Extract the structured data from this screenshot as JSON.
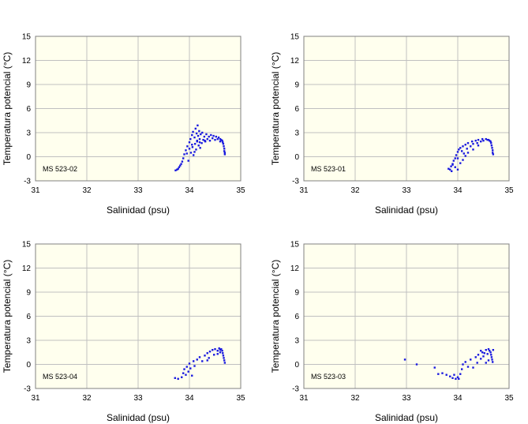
{
  "colors": {
    "plot_bg": "#ffffee",
    "grid": "#c0c0c0",
    "frame": "#808080",
    "points": "#1a1adf"
  },
  "chart_data": [
    {
      "type": "scatter",
      "station": "MS 523-02",
      "xlabel": "Salinidad (psu)",
      "ylabel": "Temperatura potencial (°C)",
      "xlim": [
        31,
        35
      ],
      "ylim": [
        -3,
        15
      ],
      "xticks": [
        "31",
        "32",
        "33",
        "34",
        "35"
      ],
      "yticks": [
        "15",
        "12",
        "9",
        "6",
        "3",
        "0",
        "-3"
      ],
      "points": [
        [
          33.73,
          -1.7
        ],
        [
          33.76,
          -1.6
        ],
        [
          33.78,
          -1.5
        ],
        [
          33.8,
          -1.3
        ],
        [
          33.82,
          -1.1
        ],
        [
          33.84,
          -0.9
        ],
        [
          33.86,
          -0.6
        ],
        [
          33.88,
          -0.2
        ],
        [
          33.9,
          0.3
        ],
        [
          33.93,
          0.8
        ],
        [
          33.96,
          1.3
        ],
        [
          33.98,
          -0.5
        ],
        [
          34.0,
          1.8
        ],
        [
          34.02,
          2.2
        ],
        [
          34.03,
          0.5
        ],
        [
          34.05,
          2.7
        ],
        [
          34.06,
          1.2
        ],
        [
          34.07,
          3.1
        ],
        [
          34.08,
          0.2
        ],
        [
          34.1,
          2.4
        ],
        [
          34.11,
          1.6
        ],
        [
          34.12,
          3.5
        ],
        [
          34.13,
          0.9
        ],
        [
          34.14,
          2.9
        ],
        [
          34.15,
          1.9
        ],
        [
          34.16,
          3.9
        ],
        [
          34.17,
          2.6
        ],
        [
          34.18,
          1.4
        ],
        [
          34.19,
          3.2
        ],
        [
          34.2,
          2.2
        ],
        [
          34.21,
          1.1
        ],
        [
          34.22,
          2.8
        ],
        [
          34.24,
          1.7
        ],
        [
          34.25,
          3.0
        ],
        [
          34.27,
          2.1
        ],
        [
          34.29,
          2.5
        ],
        [
          34.31,
          1.9
        ],
        [
          34.33,
          2.8
        ],
        [
          34.35,
          2.2
        ],
        [
          34.38,
          2.5
        ],
        [
          34.4,
          2.0
        ],
        [
          34.42,
          2.7
        ],
        [
          34.45,
          2.3
        ],
        [
          34.47,
          2.6
        ],
        [
          34.5,
          2.1
        ],
        [
          34.52,
          2.5
        ],
        [
          34.55,
          2.2
        ],
        [
          34.57,
          2.4
        ],
        [
          34.6,
          2.2
        ],
        [
          34.62,
          2.1
        ],
        [
          34.64,
          2.0
        ],
        [
          34.65,
          1.8
        ],
        [
          34.66,
          1.6
        ],
        [
          34.67,
          1.3
        ],
        [
          34.68,
          1.0
        ],
        [
          34.68,
          0.7
        ],
        [
          34.69,
          0.5
        ],
        [
          34.69,
          0.3
        ],
        [
          34.0,
          1.0
        ],
        [
          34.05,
          1.5
        ],
        [
          34.1,
          0.6
        ],
        [
          34.2,
          1.8
        ],
        [
          33.95,
          0.4
        ],
        [
          34.15,
          2.0
        ],
        [
          34.3,
          2.0
        ],
        [
          34.6,
          1.9
        ]
      ]
    },
    {
      "type": "scatter",
      "station": "MS 523-01",
      "xlabel": "Salinidad (psu)",
      "ylabel": "Temperatura potencial (°C)",
      "xlim": [
        31,
        35
      ],
      "ylim": [
        -3,
        15
      ],
      "xticks": [
        "31",
        "32",
        "33",
        "34",
        "35"
      ],
      "yticks": [
        "15",
        "12",
        "9",
        "6",
        "3",
        "0",
        "-3"
      ],
      "points": [
        [
          33.82,
          -1.5
        ],
        [
          33.85,
          -1.6
        ],
        [
          33.87,
          -1.2
        ],
        [
          33.9,
          -0.9
        ],
        [
          33.92,
          -0.5
        ],
        [
          33.95,
          -0.2
        ],
        [
          33.97,
          0.2
        ],
        [
          34.0,
          0.6
        ],
        [
          34.02,
          0.9
        ],
        [
          34.05,
          1.1
        ],
        [
          34.08,
          0.7
        ],
        [
          34.1,
          1.3
        ],
        [
          34.12,
          0.4
        ],
        [
          34.15,
          1.5
        ],
        [
          34.18,
          1.0
        ],
        [
          34.2,
          1.7
        ],
        [
          34.25,
          1.3
        ],
        [
          34.28,
          1.9
        ],
        [
          34.3,
          1.6
        ],
        [
          34.35,
          2.0
        ],
        [
          34.38,
          1.7
        ],
        [
          34.4,
          2.1
        ],
        [
          34.45,
          1.9
        ],
        [
          34.48,
          2.2
        ],
        [
          34.5,
          2.0
        ],
        [
          34.55,
          2.2
        ],
        [
          34.58,
          2.1
        ],
        [
          34.6,
          2.1
        ],
        [
          34.62,
          2.0
        ],
        [
          34.64,
          1.9
        ],
        [
          34.65,
          1.7
        ],
        [
          34.66,
          1.4
        ],
        [
          34.67,
          1.1
        ],
        [
          34.68,
          0.8
        ],
        [
          34.68,
          0.5
        ],
        [
          34.69,
          0.3
        ],
        [
          33.9,
          -1.0
        ],
        [
          33.95,
          -1.3
        ],
        [
          34.0,
          -1.6
        ],
        [
          34.05,
          -0.8
        ],
        [
          34.1,
          -0.4
        ],
        [
          34.15,
          0.1
        ],
        [
          34.2,
          0.5
        ],
        [
          34.3,
          0.9
        ],
        [
          34.4,
          1.4
        ],
        [
          33.88,
          -1.8
        ],
        [
          34.0,
          -0.2
        ]
      ]
    },
    {
      "type": "scatter",
      "station": "MS 523-04",
      "xlabel": "Salinidad (psu)",
      "ylabel": "Temperatura potencial (°C)",
      "xlim": [
        31,
        35
      ],
      "ylim": [
        -3,
        15
      ],
      "xticks": [
        "31",
        "32",
        "33",
        "34",
        "35"
      ],
      "yticks": [
        "15",
        "12",
        "9",
        "6",
        "3",
        "0",
        "-3"
      ],
      "points": [
        [
          33.72,
          -1.7
        ],
        [
          33.78,
          -1.8
        ],
        [
          33.85,
          -1.6
        ],
        [
          33.88,
          -1.1
        ],
        [
          33.9,
          -0.6
        ],
        [
          33.93,
          -1.3
        ],
        [
          33.95,
          -0.3
        ],
        [
          33.98,
          -0.9
        ],
        [
          34.0,
          0.1
        ],
        [
          34.02,
          -0.5
        ],
        [
          34.05,
          -1.4
        ],
        [
          34.08,
          0.4
        ],
        [
          34.1,
          -0.2
        ],
        [
          34.15,
          0.6
        ],
        [
          34.2,
          0.9
        ],
        [
          34.25,
          0.4
        ],
        [
          34.3,
          1.1
        ],
        [
          34.35,
          1.4
        ],
        [
          34.38,
          0.8
        ],
        [
          34.4,
          1.6
        ],
        [
          34.45,
          1.8
        ],
        [
          34.48,
          1.2
        ],
        [
          34.5,
          1.9
        ],
        [
          34.55,
          1.7
        ],
        [
          34.58,
          2.0
        ],
        [
          34.6,
          1.8
        ],
        [
          34.62,
          1.9
        ],
        [
          34.64,
          1.7
        ],
        [
          34.65,
          1.4
        ],
        [
          34.66,
          1.1
        ],
        [
          34.67,
          0.8
        ],
        [
          34.68,
          0.5
        ],
        [
          34.69,
          0.2
        ],
        [
          34.35,
          0.5
        ],
        [
          34.55,
          1.3
        ],
        [
          34.6,
          1.5
        ]
      ]
    },
    {
      "type": "scatter",
      "station": "MS 523-03",
      "xlabel": "Salinidad (psu)",
      "ylabel": "Temperatura potencial (°C)",
      "xlim": [
        31,
        35
      ],
      "ylim": [
        -3,
        15
      ],
      "xticks": [
        "31",
        "32",
        "33",
        "34",
        "35"
      ],
      "yticks": [
        "15",
        "12",
        "9",
        "6",
        "3",
        "0",
        "-3"
      ],
      "points": [
        [
          32.97,
          0.6
        ],
        [
          33.2,
          0.0
        ],
        [
          33.55,
          -0.4
        ],
        [
          33.62,
          -1.2
        ],
        [
          33.7,
          -1.1
        ],
        [
          33.78,
          -1.3
        ],
        [
          33.85,
          -1.5
        ],
        [
          33.9,
          -1.7
        ],
        [
          33.93,
          -1.3
        ],
        [
          33.96,
          -1.8
        ],
        [
          34.0,
          -1.6
        ],
        [
          34.02,
          -1.8
        ],
        [
          34.05,
          -1.2
        ],
        [
          34.08,
          -0.6
        ],
        [
          34.1,
          0.0
        ],
        [
          34.15,
          0.3
        ],
        [
          34.2,
          -0.3
        ],
        [
          34.25,
          0.6
        ],
        [
          34.3,
          -0.4
        ],
        [
          34.35,
          0.9
        ],
        [
          34.38,
          0.2
        ],
        [
          34.4,
          1.2
        ],
        [
          34.45,
          0.7
        ],
        [
          34.48,
          1.5
        ],
        [
          34.5,
          1.0
        ],
        [
          34.55,
          1.8
        ],
        [
          34.58,
          1.3
        ],
        [
          34.6,
          1.9
        ],
        [
          34.62,
          1.7
        ],
        [
          34.64,
          1.5
        ],
        [
          34.65,
          1.2
        ],
        [
          34.66,
          0.9
        ],
        [
          34.67,
          0.6
        ],
        [
          34.68,
          0.3
        ],
        [
          34.69,
          1.8
        ],
        [
          34.6,
          0.5
        ],
        [
          34.55,
          0.2
        ],
        [
          34.45,
          1.7
        ],
        [
          34.52,
          1.4
        ]
      ]
    }
  ]
}
